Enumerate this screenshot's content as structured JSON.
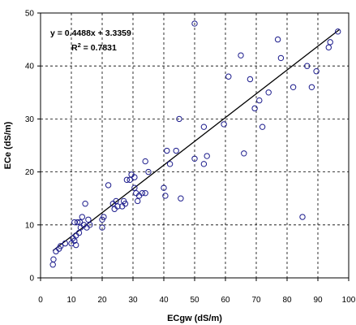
{
  "chart_data": {
    "type": "scatter",
    "title": "",
    "xlabel": "ECgw (dS/m)",
    "ylabel": "ECe (dS/m)",
    "xlim": [
      0,
      100
    ],
    "ylim": [
      0,
      50
    ],
    "x_ticks": [
      "0",
      "10",
      "20",
      "30",
      "40",
      "50",
      "60",
      "70",
      "80",
      "90",
      "100"
    ],
    "y_ticks": [
      "0",
      "10",
      "20",
      "30",
      "40",
      "50"
    ],
    "grid": true,
    "legend": "none",
    "marker_color": "#1c1c8c",
    "trendline": {
      "slope": 0.4488,
      "intercept": 3.3359,
      "x_range": [
        4,
        97
      ],
      "color": "#000000"
    },
    "annotation": {
      "equation": "y = 0.4488x + 3.3359",
      "r2_prefix": "R",
      "r2_sup": "2",
      "r2_value": " = 0.7831"
    },
    "points": [
      [
        4,
        2.5
      ],
      [
        4.2,
        3.5
      ],
      [
        5,
        5
      ],
      [
        6,
        5.5
      ],
      [
        6.5,
        6
      ],
      [
        8,
        6.5
      ],
      [
        10,
        6.5
      ],
      [
        10.5,
        7.5
      ],
      [
        11,
        7
      ],
      [
        11.5,
        6.2
      ],
      [
        11.5,
        8
      ],
      [
        11,
        10.5
      ],
      [
        12,
        10.5
      ],
      [
        12.5,
        8.5
      ],
      [
        12.8,
        10.5
      ],
      [
        13,
        9.5
      ],
      [
        13.5,
        11.5
      ],
      [
        14,
        10
      ],
      [
        14.5,
        14
      ],
      [
        15,
        9.5
      ],
      [
        15.5,
        11
      ],
      [
        16,
        10
      ],
      [
        20,
        9.5
      ],
      [
        20,
        11
      ],
      [
        20.5,
        11.5
      ],
      [
        22,
        17.5
      ],
      [
        23.5,
        14
      ],
      [
        24,
        13
      ],
      [
        24.5,
        14.5
      ],
      [
        25,
        13.5
      ],
      [
        26.5,
        13.5
      ],
      [
        27,
        14.5
      ],
      [
        27.5,
        14
      ],
      [
        28,
        18.5
      ],
      [
        29,
        18.5
      ],
      [
        29.5,
        19.5
      ],
      [
        30.5,
        19
      ],
      [
        30.5,
        17
      ],
      [
        31,
        16
      ],
      [
        31.5,
        14.5
      ],
      [
        32,
        15.5
      ],
      [
        33,
        16
      ],
      [
        34,
        16
      ],
      [
        34,
        22
      ],
      [
        35,
        20
      ],
      [
        40,
        17
      ],
      [
        40.5,
        15.5
      ],
      [
        41,
        24
      ],
      [
        42,
        21.5
      ],
      [
        44,
        24
      ],
      [
        45,
        30
      ],
      [
        45.5,
        15
      ],
      [
        50,
        48
      ],
      [
        50,
        22.5
      ],
      [
        53,
        28.5
      ],
      [
        53,
        21.5
      ],
      [
        54,
        23
      ],
      [
        59.5,
        29
      ],
      [
        61,
        38
      ],
      [
        65,
        42
      ],
      [
        66,
        23.5
      ],
      [
        68,
        37.5
      ],
      [
        69.5,
        32
      ],
      [
        71,
        33.5
      ],
      [
        72,
        28.5
      ],
      [
        74,
        35
      ],
      [
        77,
        45
      ],
      [
        78,
        41.5
      ],
      [
        82,
        36
      ],
      [
        85,
        11.5
      ],
      [
        86.5,
        40
      ],
      [
        88,
        36
      ],
      [
        89.5,
        39
      ],
      [
        93.5,
        43.5
      ],
      [
        94,
        44.5
      ],
      [
        96.5,
        46.5
      ]
    ]
  }
}
